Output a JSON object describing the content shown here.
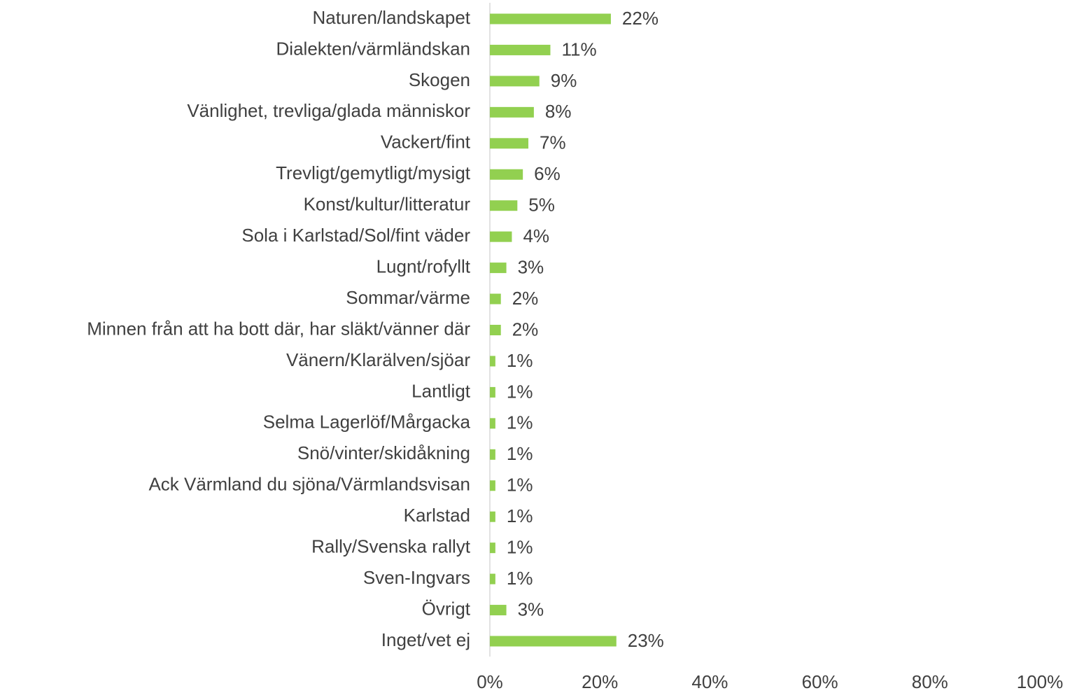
{
  "chart_data": {
    "type": "bar",
    "orientation": "horizontal",
    "categories": [
      "Naturen/landskapet",
      "Dialekten/värmländskan",
      "Skogen",
      "Vänlighet, trevliga/glada människor",
      "Vackert/fint",
      "Trevligt/gemytligt/mysigt",
      "Konst/kultur/litteratur",
      "Sola i Karlstad/Sol/fint väder",
      "Lugnt/rofyllt",
      "Sommar/värme",
      "Minnen från att ha bott där, har släkt/vänner där",
      "Vänern/Klarälven/sjöar",
      "Lantligt",
      "Selma Lagerlöf/Mårgacka",
      "Snö/vinter/skidåkning",
      "Ack Värmland du sjöna/Värmlandsvisan",
      "Karlstad",
      "Rally/Svenska rallyt",
      "Sven-Ingvars",
      "Övrigt",
      "Inget/vet ej"
    ],
    "values": [
      22,
      11,
      9,
      8,
      7,
      6,
      5,
      4,
      3,
      2,
      2,
      1,
      1,
      1,
      1,
      1,
      1,
      1,
      1,
      3,
      23
    ],
    "value_labels": [
      "22%",
      "11%",
      "9%",
      "8%",
      "7%",
      "6%",
      "5%",
      "4%",
      "3%",
      "2%",
      "2%",
      "1%",
      "1%",
      "1%",
      "1%",
      "1%",
      "1%",
      "1%",
      "1%",
      "3%",
      "23%"
    ],
    "color": "#92d050",
    "xlim": [
      0,
      100
    ],
    "xticks": [
      {
        "value": 0,
        "label": "0%"
      },
      {
        "value": 20,
        "label": "20%"
      },
      {
        "value": 40,
        "label": "40%"
      },
      {
        "value": 60,
        "label": "60%"
      },
      {
        "value": 80,
        "label": "80%"
      },
      {
        "value": 100,
        "label": "100%"
      }
    ],
    "grid": false
  }
}
